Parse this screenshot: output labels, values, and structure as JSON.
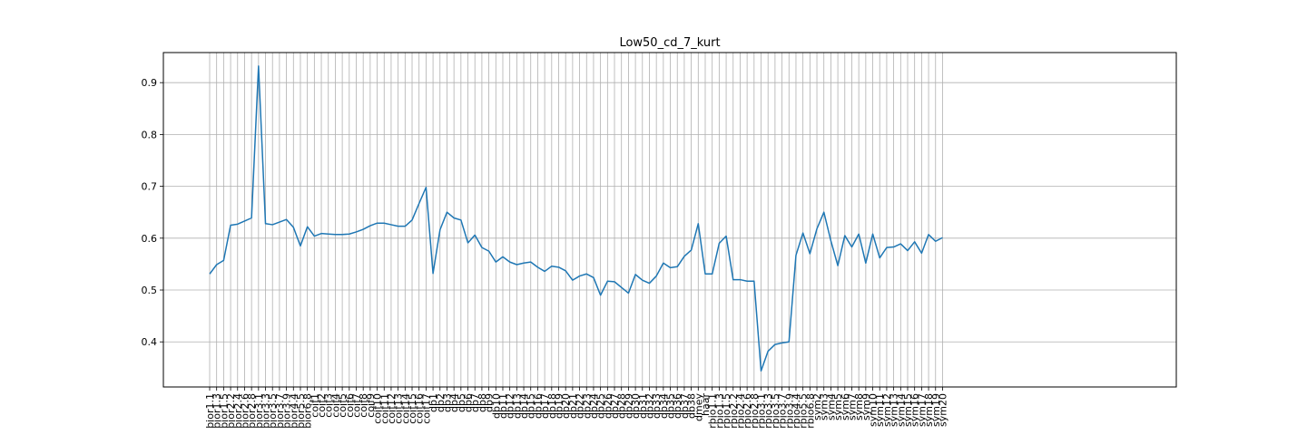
{
  "chart_data": {
    "type": "line",
    "title": "Low50_cd_7_kurt",
    "xlabel": "",
    "ylabel": "",
    "ylim": [
      0.313,
      0.958
    ],
    "yticks": [
      0.4,
      0.5,
      0.6,
      0.7,
      0.8,
      0.9
    ],
    "grid": true,
    "line_color": "#1f77b4",
    "categories": [
      "bior1.1",
      "bior1.3",
      "bior1.5",
      "bior2.2",
      "bior2.4",
      "bior2.6",
      "bior2.8",
      "bior3.1",
      "bior3.3",
      "bior3.5",
      "bior3.7",
      "bior3.9",
      "bior4.4",
      "bior5.5",
      "bior6.8",
      "coif1",
      "coif2",
      "coif3",
      "coif4",
      "coif5",
      "coif6",
      "coif7",
      "coif8",
      "coif9",
      "coif10",
      "coif11",
      "coif12",
      "coif13",
      "coif14",
      "coif15",
      "coif16",
      "coif17",
      "db1",
      "db2",
      "db3",
      "db4",
      "db5",
      "db6",
      "db7",
      "db8",
      "db9",
      "db10",
      "db11",
      "db12",
      "db13",
      "db14",
      "db15",
      "db16",
      "db17",
      "db18",
      "db19",
      "db20",
      "db21",
      "db22",
      "db23",
      "db24",
      "db25",
      "db26",
      "db27",
      "db28",
      "db29",
      "db30",
      "db31",
      "db32",
      "db33",
      "db34",
      "db35",
      "db36",
      "db37",
      "db38",
      "dmey",
      "haar",
      "rbio1.1",
      "rbio1.3",
      "rbio1.5",
      "rbio2.2",
      "rbio2.4",
      "rbio2.6",
      "rbio2.8",
      "rbio3.1",
      "rbio3.3",
      "rbio3.5",
      "rbio3.7",
      "rbio3.9",
      "rbio4.4",
      "rbio5.5",
      "rbio6.8",
      "sym2",
      "sym3",
      "sym4",
      "sym5",
      "sym6",
      "sym7",
      "sym8",
      "sym9",
      "sym10",
      "sym11",
      "sym12",
      "sym13",
      "sym14",
      "sym15",
      "sym16",
      "sym17",
      "sym18",
      "sym19",
      "sym20"
    ],
    "values": [
      0.531,
      0.549,
      0.557,
      0.625,
      0.627,
      0.633,
      0.639,
      0.932,
      0.628,
      0.626,
      0.631,
      0.636,
      0.621,
      0.585,
      0.622,
      0.604,
      0.609,
      0.608,
      0.607,
      0.607,
      0.608,
      0.612,
      0.617,
      0.624,
      0.629,
      0.629,
      0.626,
      0.623,
      0.623,
      0.635,
      0.667,
      0.698,
      0.532,
      0.616,
      0.65,
      0.639,
      0.635,
      0.591,
      0.606,
      0.582,
      0.575,
      0.554,
      0.564,
      0.554,
      0.549,
      0.552,
      0.554,
      0.544,
      0.536,
      0.546,
      0.544,
      0.537,
      0.519,
      0.527,
      0.531,
      0.524,
      0.49,
      0.517,
      0.516,
      0.505,
      0.494,
      0.53,
      0.519,
      0.513,
      0.527,
      0.552,
      0.543,
      0.545,
      0.565,
      0.577,
      0.628,
      0.531,
      0.531,
      0.59,
      0.604,
      0.52,
      0.52,
      0.517,
      0.517,
      0.344,
      0.382,
      0.395,
      0.398,
      0.4,
      0.567,
      0.61,
      0.57,
      0.618,
      0.65,
      0.595,
      0.547,
      0.605,
      0.583,
      0.608,
      0.552,
      0.608,
      0.562,
      0.582,
      0.583,
      0.589,
      0.576,
      0.593,
      0.571,
      0.607,
      0.594,
      0.601
    ]
  }
}
